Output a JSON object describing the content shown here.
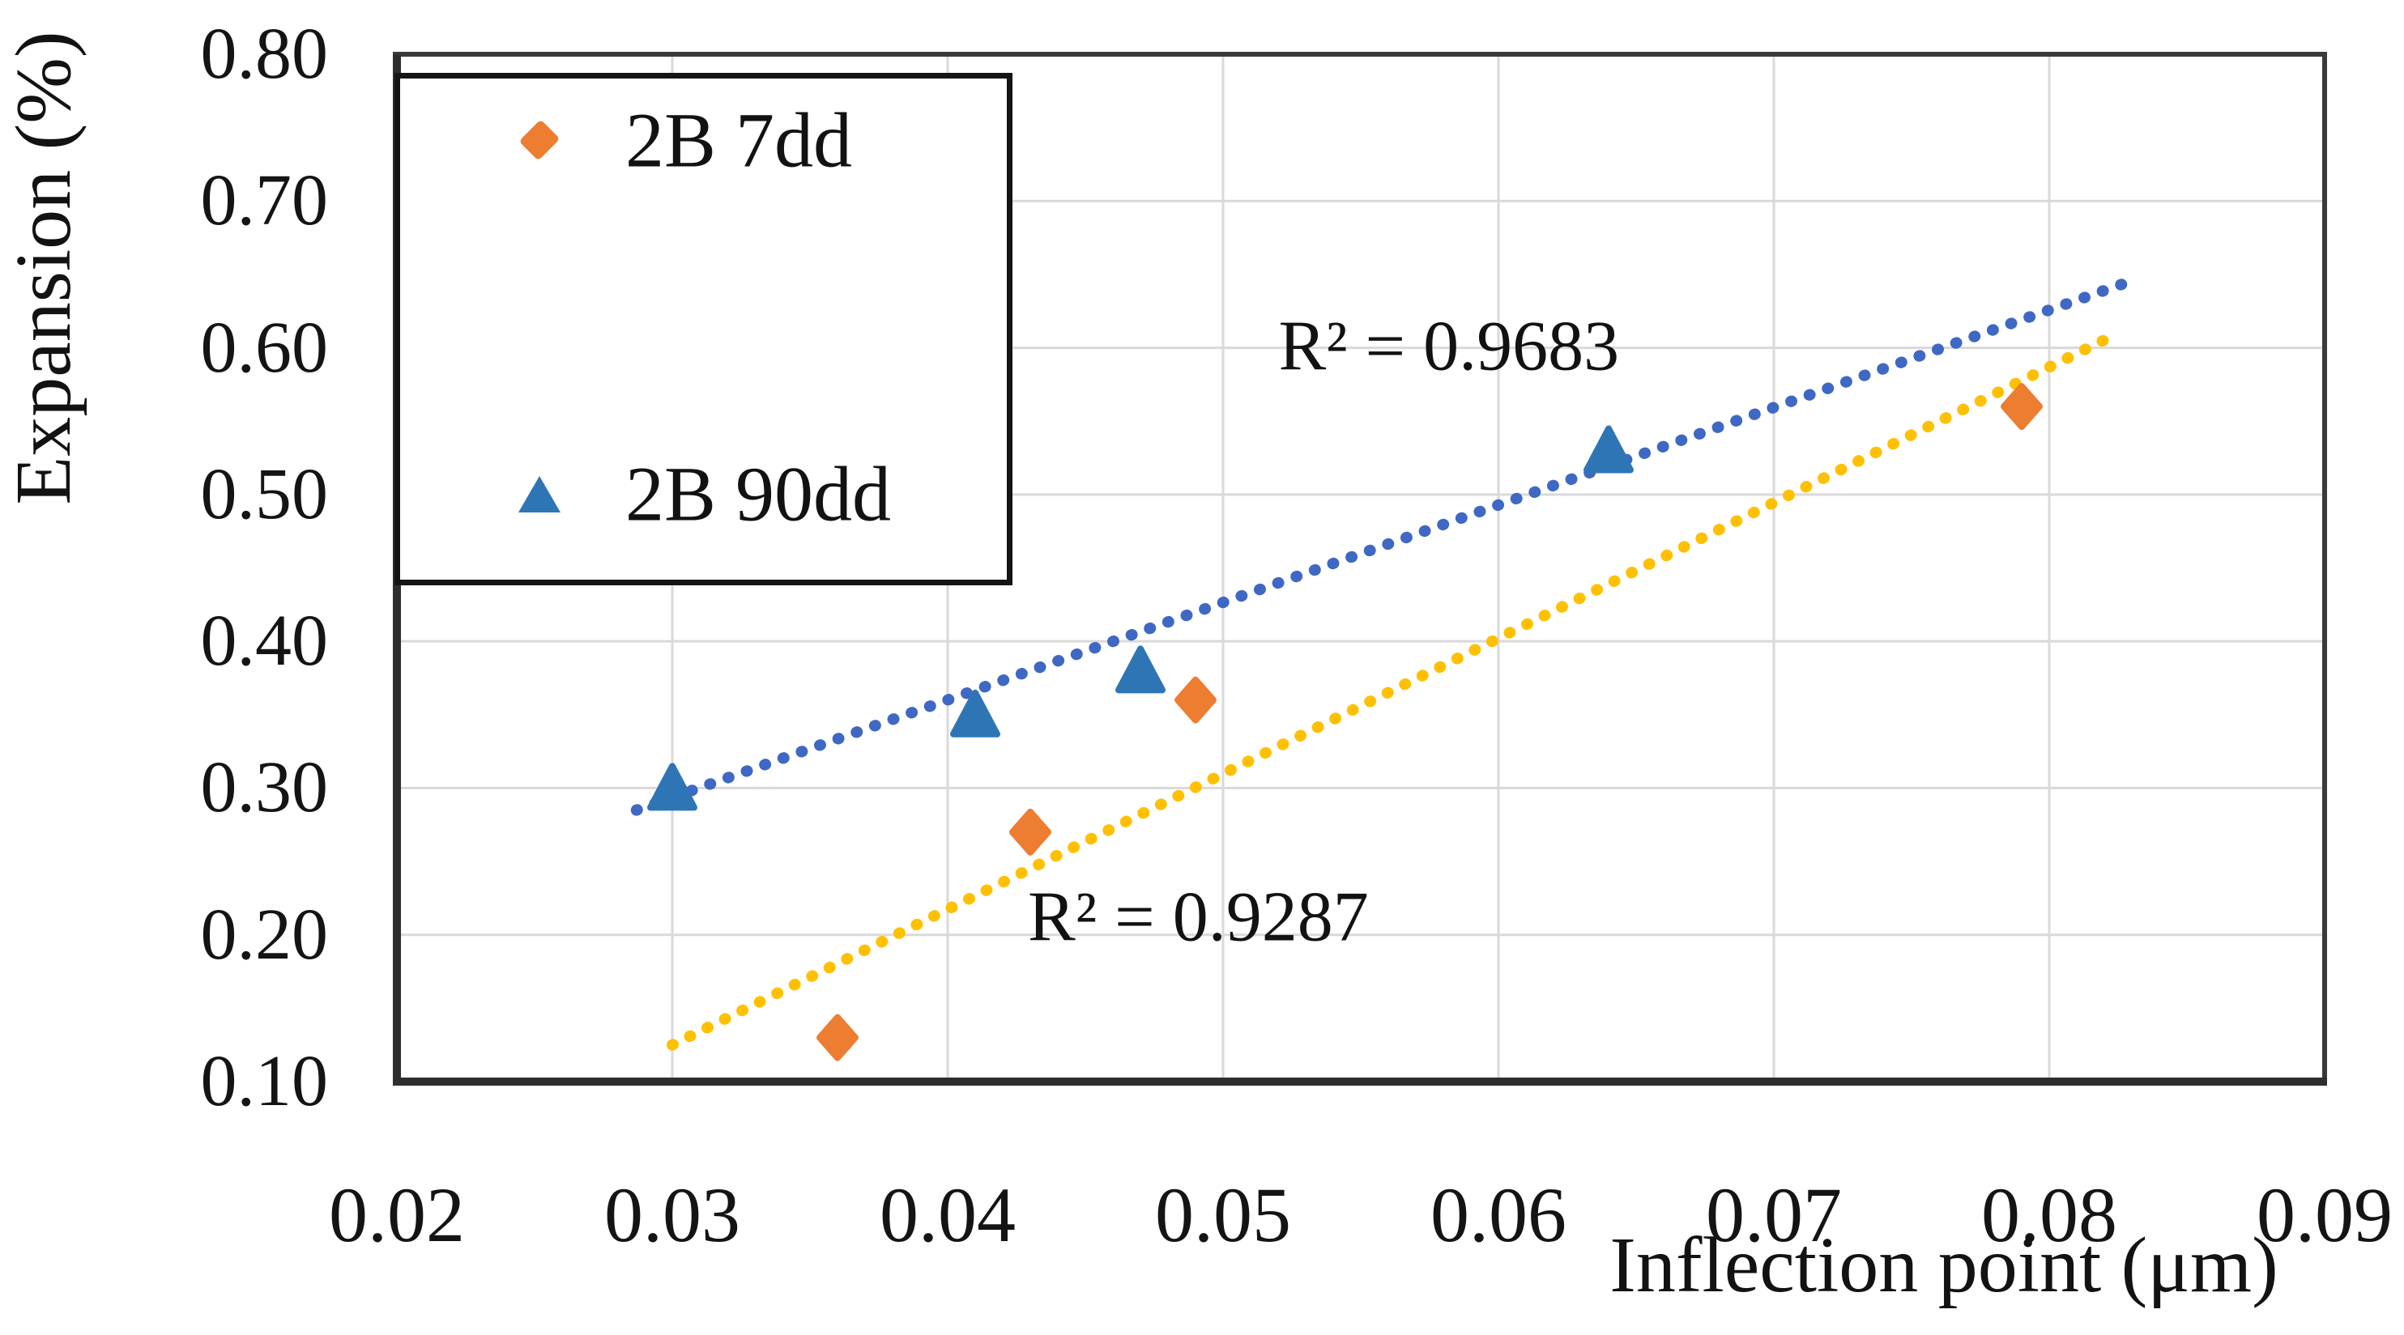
{
  "chart_data": {
    "type": "scatter",
    "title": "",
    "xlabel": "Inflection point (μm)",
    "ylabel": "Expansion (%)",
    "xlim": [
      0.02,
      0.09
    ],
    "ylim": [
      0.1,
      0.8
    ],
    "grid": true,
    "grid_color": "#D9D9D9",
    "axis_color": "#2E2E2E",
    "x_ticks": [
      "0.02",
      "0.03",
      "0.04",
      "0.05",
      "0.06",
      "0.07",
      "0.08",
      "0.09"
    ],
    "y_ticks": [
      "0.80",
      "0.70",
      "0.60",
      "0.50",
      "0.40",
      "0.30",
      "0.20",
      "0.10"
    ],
    "legend_position": "top-left",
    "series": [
      {
        "name": "2B 7dd",
        "marker": "diamond",
        "color": "#ED7D31",
        "points": [
          [
            0.036,
            0.13
          ],
          [
            0.043,
            0.27
          ],
          [
            0.049,
            0.36
          ],
          [
            0.079,
            0.56
          ]
        ]
      },
      {
        "name": "2B 90dd",
        "marker": "triangle",
        "color": "#2E75B6",
        "points": [
          [
            0.03,
            0.3
          ],
          [
            0.041,
            0.35
          ],
          [
            0.047,
            0.38
          ],
          [
            0.064,
            0.53
          ]
        ]
      }
    ],
    "trendlines": [
      {
        "for_series": "2B 90dd",
        "style": "dotted",
        "color": "#3E68C4",
        "start": [
          0.0287,
          0.285
        ],
        "end": [
          0.0829,
          0.645
        ],
        "r_squared": 0.9683
      },
      {
        "for_series": "2B 7dd",
        "style": "dotted",
        "color": "#FFC000",
        "start": [
          0.03,
          0.125
        ],
        "end": [
          0.0824,
          0.609
        ],
        "r_squared": 0.9287
      }
    ],
    "annotations": [
      {
        "text": "R² = 0.9683",
        "x": 0.0582,
        "y": 0.601
      },
      {
        "text": "R² = 0.9287",
        "x": 0.0491,
        "y": 0.212
      }
    ]
  }
}
